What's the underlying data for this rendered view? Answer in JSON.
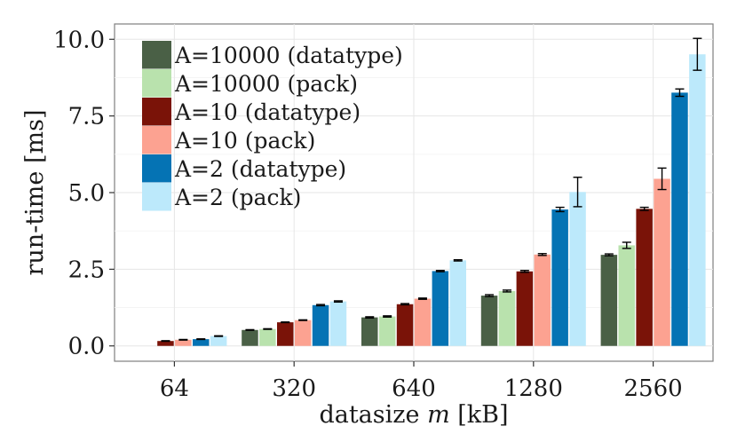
{
  "chart_data": {
    "type": "bar",
    "title": "",
    "xlabel_prefix": "datasize ",
    "xlabel_var": "m",
    "xlabel_suffix": " [kB]",
    "ylabel": "run-time [ms]",
    "ylim": [
      -0.5,
      10.5
    ],
    "yticks": [
      0,
      2.5,
      5,
      7.5,
      10
    ],
    "ytick_labels": [
      "0.0",
      "2.5",
      "5.0",
      "7.5",
      "10.0"
    ],
    "grid": true,
    "legend_position": "top-left",
    "categories": [
      "64",
      "320",
      "640",
      "1280",
      "2560"
    ],
    "series": [
      {
        "name": "A=10000 (datatype)",
        "color": "#4a6046",
        "values": [
          null,
          0.52,
          0.93,
          1.64,
          2.97
        ],
        "errors": [
          null,
          0.01,
          0.02,
          0.03,
          0.03
        ]
      },
      {
        "name": "A=10000 (pack)",
        "color": "#b9e2ad",
        "values": [
          null,
          0.55,
          0.96,
          1.79,
          3.28
        ],
        "errors": [
          null,
          0.01,
          0.02,
          0.03,
          0.1
        ]
      },
      {
        "name": "A=10 (datatype)",
        "color": "#7a1308",
        "values": [
          0.16,
          0.77,
          1.36,
          2.43,
          4.47
        ],
        "errors": [
          0.01,
          0.01,
          0.02,
          0.03,
          0.05
        ]
      },
      {
        "name": "A=10 (pack)",
        "color": "#fca291",
        "values": [
          0.2,
          0.84,
          1.54,
          2.98,
          5.45
        ],
        "errors": [
          0.01,
          0.01,
          0.02,
          0.03,
          0.35
        ]
      },
      {
        "name": "A=2 (datatype)",
        "color": "#0573b4",
        "values": [
          0.22,
          1.33,
          2.44,
          4.45,
          8.26
        ],
        "errors": [
          0.01,
          0.02,
          0.02,
          0.07,
          0.12
        ]
      },
      {
        "name": "A=2 (pack)",
        "color": "#bce9fb",
        "values": [
          0.32,
          1.45,
          2.79,
          5.02,
          9.51
        ],
        "errors": [
          0.01,
          0.02,
          0.02,
          0.48,
          0.52
        ]
      }
    ]
  }
}
